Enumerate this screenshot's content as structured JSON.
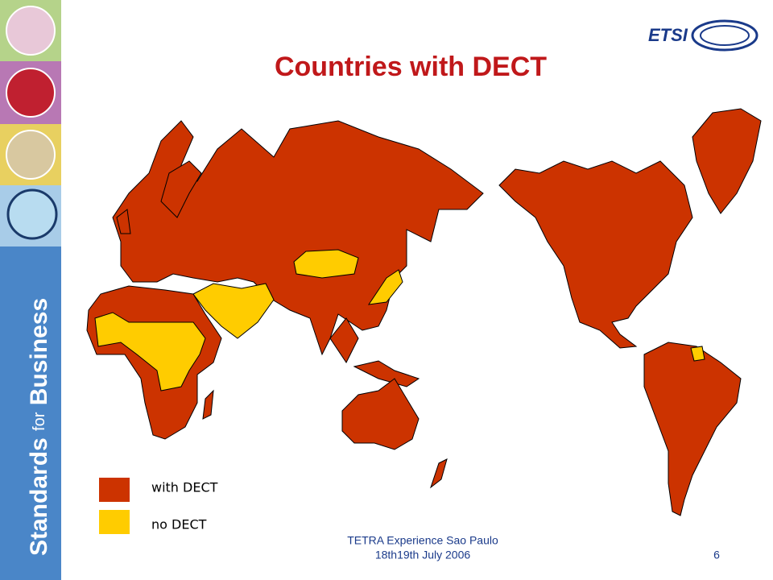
{
  "slide": {
    "title": "Countries with DECT",
    "logo": "ETSI",
    "sidebar": [
      "Standards",
      "for",
      "Business"
    ],
    "legend": [
      "with DECT",
      "no DECT"
    ],
    "footer": [
      "TETRA Experience Sao Paulo",
      "18th19th July 2006"
    ],
    "page": "6"
  }
}
